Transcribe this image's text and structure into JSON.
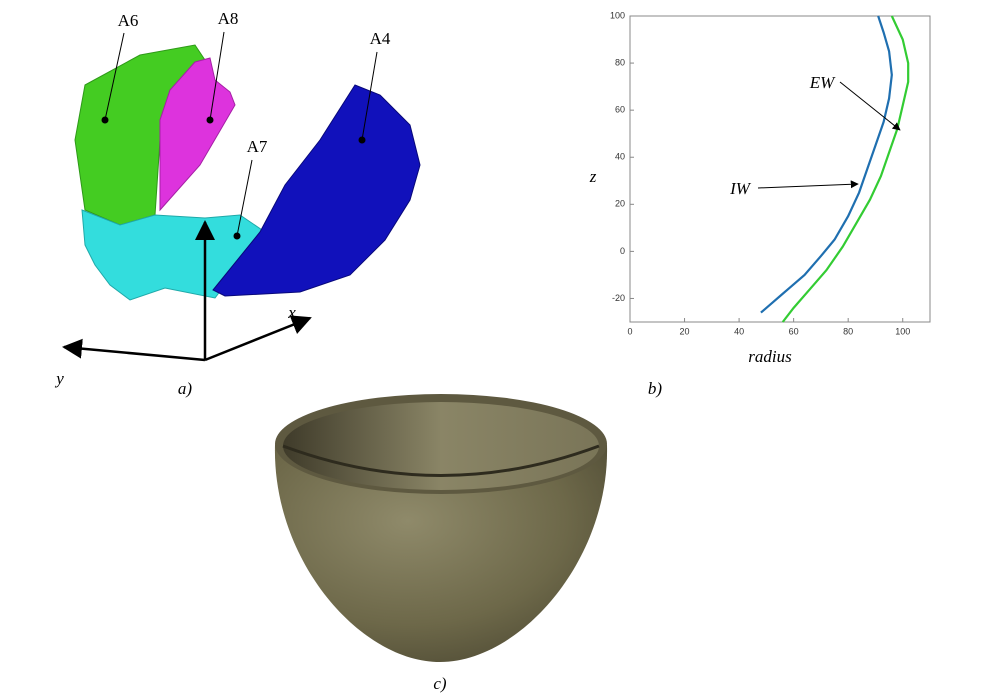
{
  "panel_a": {
    "labels": [
      "A6",
      "A8",
      "A7",
      "A4"
    ],
    "axes": [
      "x",
      "y"
    ]
  },
  "captions": [
    "a)",
    "b)",
    "c)"
  ],
  "chart_data": {
    "type": "line",
    "xlabel": "radius",
    "ylabel": "z",
    "xlim": [
      0,
      110
    ],
    "ylim": [
      -30,
      100
    ],
    "xticks": [
      0,
      20,
      40,
      60,
      80,
      100
    ],
    "yticks": [
      -20,
      0,
      20,
      40,
      60,
      80,
      100
    ],
    "series": [
      {
        "name": "IW",
        "color": "#1f6fb0",
        "x": [
          48,
          52,
          56,
          58,
          64,
          70,
          75,
          80,
          84,
          87,
          90,
          93,
          95,
          96,
          95,
          93,
          91
        ],
        "values": [
          -26,
          -22,
          -18,
          -16,
          -10,
          -2,
          5,
          15,
          25,
          35,
          45,
          55,
          65,
          75,
          85,
          93,
          100
        ]
      },
      {
        "name": "EW",
        "color": "#33cc33",
        "x": [
          56,
          60,
          66,
          72,
          78,
          83,
          88,
          92,
          95,
          98,
          100,
          102,
          102,
          100,
          96
        ],
        "values": [
          -30,
          -24,
          -16,
          -8,
          2,
          12,
          22,
          32,
          42,
          52,
          62,
          72,
          80,
          90,
          100
        ]
      }
    ]
  }
}
